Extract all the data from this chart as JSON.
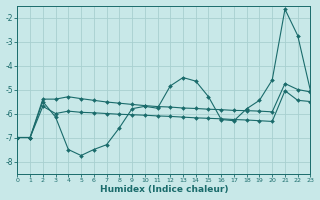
{
  "bg_color": "#c8e8e8",
  "grid_color": "#a8d0d0",
  "line_color": "#1a6b6b",
  "xlabel": "Humidex (Indice chaleur)",
  "xlim": [
    0,
    23
  ],
  "ylim": [
    -8.5,
    -1.5
  ],
  "yticks": [
    -8,
    -7,
    -6,
    -5,
    -4,
    -3,
    -2
  ],
  "xticks": [
    0,
    1,
    2,
    3,
    4,
    5,
    6,
    7,
    8,
    9,
    10,
    11,
    12,
    13,
    14,
    15,
    16,
    17,
    18,
    19,
    20,
    21,
    22,
    23
  ],
  "s1_x": [
    0,
    1,
    2,
    3,
    4,
    5,
    6,
    7,
    8,
    9,
    10,
    11,
    12,
    13,
    14,
    15,
    16,
    17,
    18,
    19,
    20,
    21,
    22,
    23
  ],
  "s1_y": [
    -7.0,
    -7.0,
    -5.4,
    -5.4,
    -5.3,
    -5.38,
    -5.45,
    -5.52,
    -5.57,
    -5.62,
    -5.67,
    -5.71,
    -5.73,
    -5.77,
    -5.79,
    -5.82,
    -5.84,
    -5.87,
    -5.88,
    -5.9,
    -5.93,
    -4.75,
    -5.0,
    -5.1
  ],
  "s2_x": [
    0,
    1,
    2,
    3,
    4,
    5,
    6,
    7,
    8,
    9,
    10,
    11,
    12,
    13,
    14,
    15,
    16,
    17,
    18,
    19,
    20,
    21,
    22,
    23
  ],
  "s2_y": [
    -7.0,
    -7.0,
    -5.5,
    -6.15,
    -7.5,
    -7.75,
    -7.5,
    -7.3,
    -6.6,
    -5.8,
    -5.7,
    -5.78,
    -4.85,
    -4.5,
    -4.65,
    -5.3,
    -6.25,
    -6.3,
    -5.8,
    -5.45,
    -4.6,
    -1.65,
    -2.75,
    -5.05
  ],
  "s3_x": [
    0,
    1,
    2,
    3,
    4,
    5,
    6,
    7,
    8,
    9,
    10,
    11,
    12,
    13,
    14,
    15,
    16,
    17,
    18,
    19,
    20,
    21,
    22,
    23
  ],
  "s3_y": [
    -7.0,
    -7.0,
    -5.7,
    -6.0,
    -5.9,
    -5.95,
    -5.97,
    -6.0,
    -6.03,
    -6.05,
    -6.07,
    -6.1,
    -6.12,
    -6.15,
    -6.18,
    -6.2,
    -6.22,
    -6.25,
    -6.27,
    -6.3,
    -6.33,
    -5.05,
    -5.45,
    -5.5
  ]
}
